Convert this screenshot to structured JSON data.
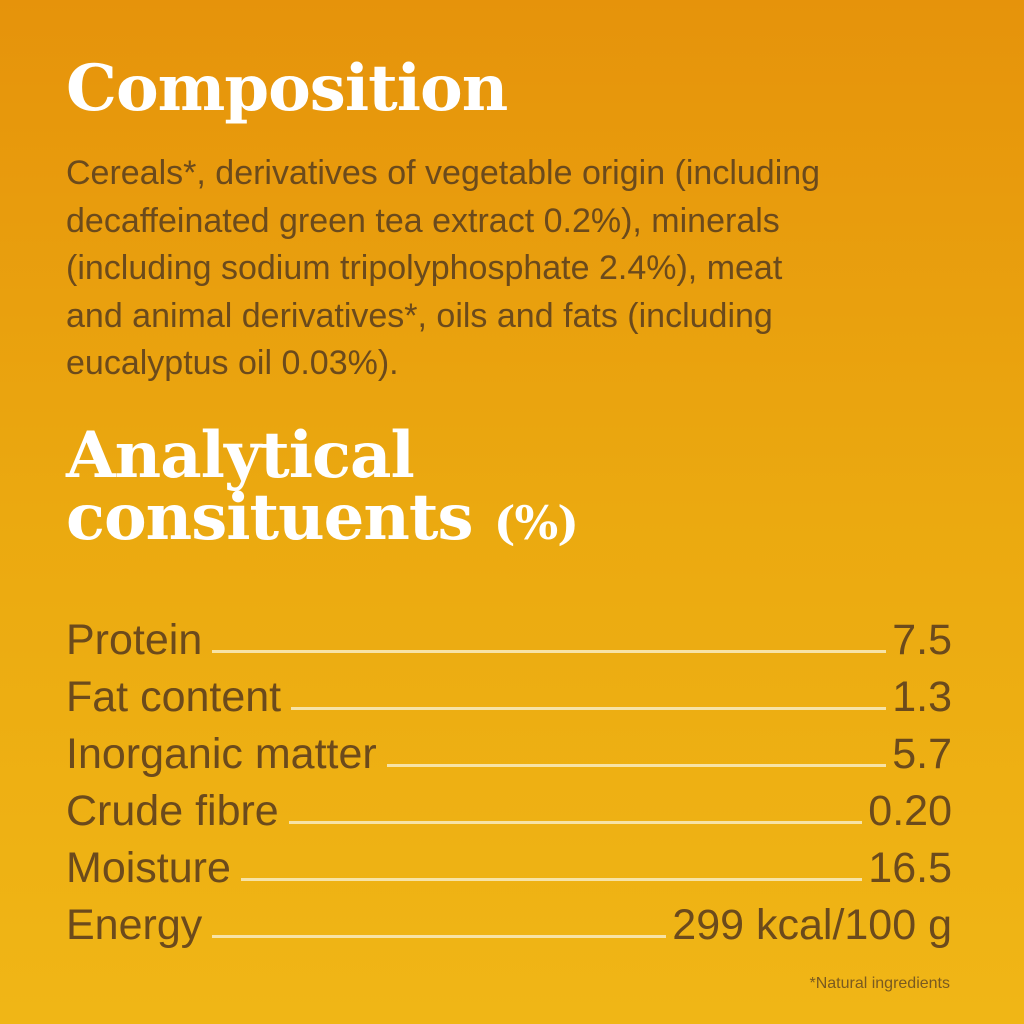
{
  "composition": {
    "title": "Composition",
    "lines": [
      "Cereals*, derivatives of vegetable origin (including",
      "decaffeinated green tea extract 0.2%), minerals",
      "(including sodium tripolyphosphate 2.4%), meat",
      "and animal derivatives*, oils and fats (including",
      "eucalyptus oil 0.03%)."
    ]
  },
  "analytical": {
    "title_lines": [
      "Analytical",
      "consituents"
    ],
    "unit": "(%)",
    "rows": [
      {
        "label": "Protein",
        "value": "7.5"
      },
      {
        "label": "Fat content",
        "value": "1.3"
      },
      {
        "label": "Inorganic matter",
        "value": "5.7"
      },
      {
        "label": "Crude fibre",
        "value": "0.20"
      },
      {
        "label": "Moisture",
        "value": "16.5"
      },
      {
        "label": "Energy",
        "value": "299 kcal/100 g"
      }
    ]
  },
  "footnote": "*Natural ingredients"
}
